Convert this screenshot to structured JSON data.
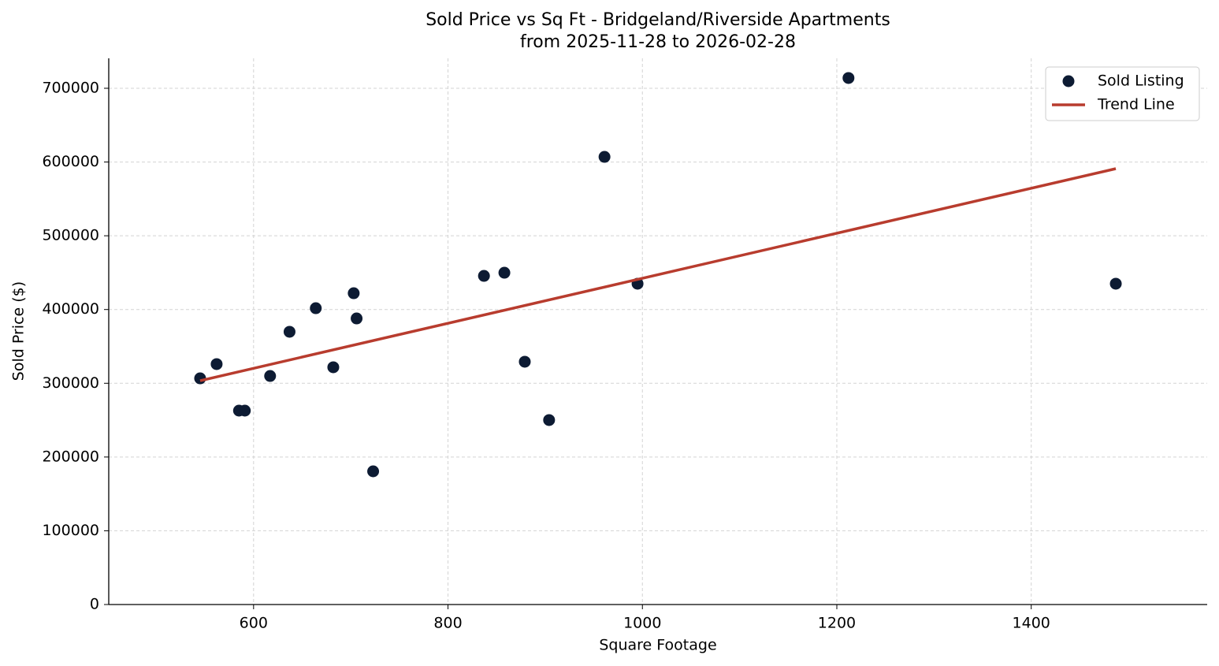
{
  "chart_data": {
    "type": "scatter",
    "title": "Sold Price vs Sq Ft - Bridgeland/Riverside Apartments",
    "subtitle": "from 2025-11-28 to 2026-02-28",
    "x_label": "Square Footage",
    "y_label": "Sold Price ($)",
    "xlim": [
      451,
      1581
    ],
    "ylim": [
      0,
      740600
    ],
    "xticks": [
      600,
      800,
      1000,
      1200,
      1400
    ],
    "yticks": [
      0,
      100000,
      200000,
      300000,
      400000,
      500000,
      600000,
      700000
    ],
    "grid": true,
    "legend": "upper right",
    "series": [
      {
        "name": "Sold Listing",
        "type": "scatter",
        "color": "#0d1b33",
        "x": [
          545,
          562,
          585,
          591,
          617,
          637,
          664,
          682,
          703,
          706,
          723,
          837,
          858,
          879,
          904,
          961,
          995,
          1212,
          1487
        ],
        "values": [
          306700,
          326000,
          262900,
          262900,
          309900,
          369800,
          401800,
          321700,
          422100,
          387900,
          180600,
          445600,
          449900,
          329200,
          250100,
          607000,
          435000,
          713900,
          435000
        ]
      },
      {
        "name": "Trend Line",
        "type": "line",
        "color": "#b83c2e",
        "x": [
          545,
          1487
        ],
        "values": [
          303500,
          591000
        ]
      }
    ]
  }
}
